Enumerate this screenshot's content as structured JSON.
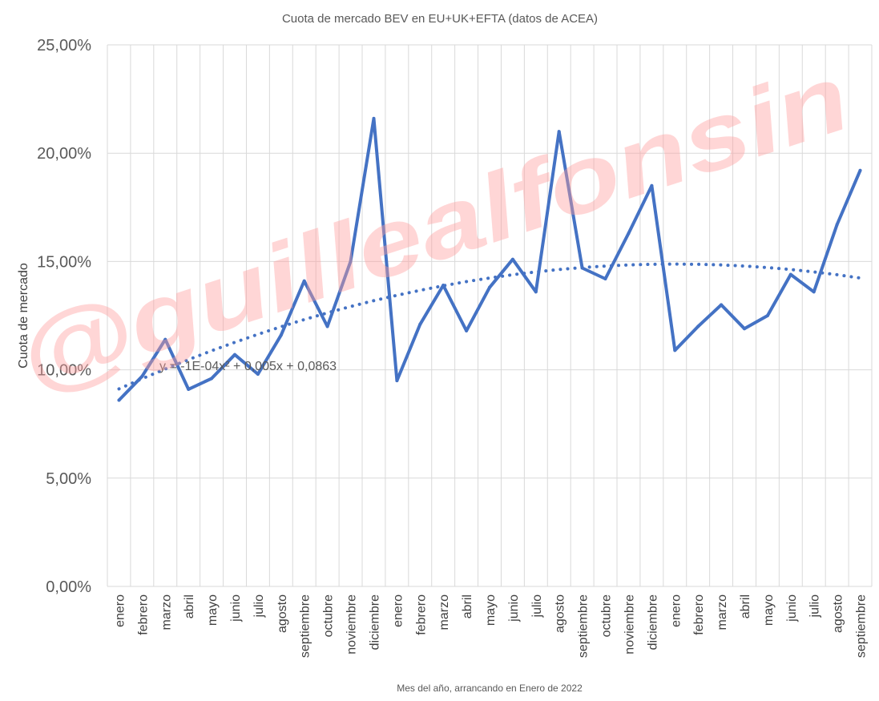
{
  "chart_data": {
    "type": "line",
    "title": "Cuota de mercado BEV en EU+UK+EFTA (datos de ACEA)",
    "xlabel": "Mes del año, arrancando en Enero de 2022",
    "ylabel": "Cuota de mercado",
    "ylim": [
      0,
      25
    ],
    "y_ticks": [
      "0,00%",
      "5,00%",
      "10,00%",
      "15,00%",
      "20,00%",
      "25,00%"
    ],
    "y_tick_values": [
      0,
      5,
      10,
      15,
      20,
      25
    ],
    "grid": true,
    "categories": [
      "enero",
      "febrero",
      "marzo",
      "abril",
      "mayo",
      "junio",
      "julio",
      "agosto",
      "septiembre",
      "octubre",
      "noviembre",
      "diciembre",
      "enero",
      "febrero",
      "marzo",
      "abril",
      "mayo",
      "junio",
      "julio",
      "agosto",
      "septiembre",
      "octubre",
      "noviembre",
      "diciembre",
      "enero",
      "febrero",
      "marzo",
      "abril",
      "mayo",
      "junio",
      "julio",
      "agosto",
      "septiembre"
    ],
    "series": [
      {
        "color": "#4472c4",
        "values": [
          8.6,
          9.7,
          11.4,
          9.1,
          9.6,
          10.7,
          9.8,
          11.6,
          14.1,
          12.0,
          15.0,
          21.6,
          9.5,
          12.1,
          13.9,
          11.8,
          13.8,
          15.1,
          13.6,
          21.0,
          14.7,
          14.2,
          16.3,
          18.5,
          10.9,
          12.0,
          13.0,
          11.9,
          12.5,
          14.4,
          13.6,
          16.7,
          19.2
        ]
      }
    ],
    "trendline": {
      "type": "polynomial",
      "color": "#4472c4",
      "equation": "y = -1E-04x² + 0,005x + 0,0863",
      "coefficients_pct": {
        "a": -0.01,
        "b": 0.5,
        "c": 8.63
      }
    },
    "watermark": "@guillealfonsin"
  }
}
